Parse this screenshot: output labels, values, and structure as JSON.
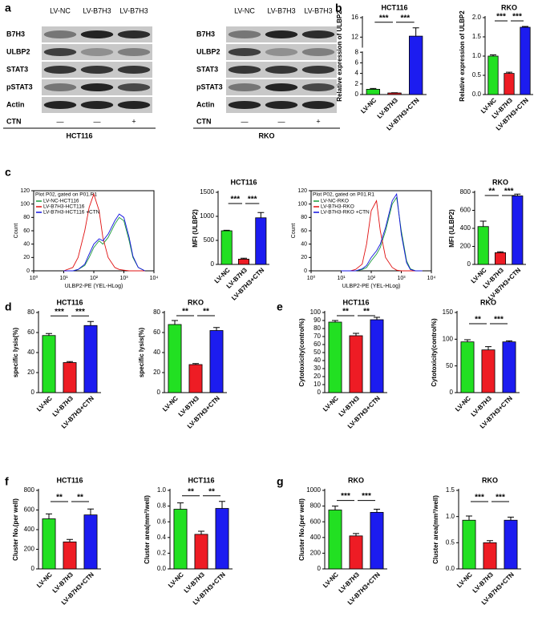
{
  "panel_labels": [
    "a",
    "b",
    "c",
    "d",
    "e",
    "f",
    "g"
  ],
  "blots": [
    {
      "cell_line": "HCT116",
      "lanes": [
        "LV-NC",
        "LV-B7H3",
        "LV-B7H3"
      ],
      "proteins": [
        "B7H3",
        "ULBP2",
        "STAT3",
        "pSTAT3",
        "Actin"
      ],
      "treatment": "CTN",
      "treatment_marks": [
        "—",
        "—",
        "+"
      ]
    },
    {
      "cell_line": "RKO",
      "lanes": [
        "LV-NC",
        "LV-B7H3",
        "LV-B7H3"
      ],
      "proteins": [
        "B7H3",
        "ULBP2",
        "STAT3",
        "pSTAT3",
        "Actin"
      ],
      "treatment": "CTN",
      "treatment_marks": [
        "—",
        "—",
        "+"
      ]
    }
  ],
  "chart_data": [
    {
      "type": "bar",
      "title": "HCT116",
      "ylabel": "Relative expression of ULBP2",
      "categories": [
        "LV-NC",
        "LV-B7H3",
        "LV-B7H3+CTN"
      ],
      "colors": [
        "#22e022",
        "#ee1c24",
        "#1c1cf0"
      ],
      "values": [
        1.0,
        0.3,
        12.2
      ],
      "errors": [
        0.15,
        0.05,
        1.7
      ],
      "significance": [
        "***",
        "***"
      ],
      "ylim": [
        0,
        16
      ],
      "ybreak": [
        8,
        10
      ],
      "yticks": [
        0,
        2,
        4,
        6,
        8,
        12,
        16
      ]
    },
    {
      "type": "bar",
      "title": "RKO",
      "ylabel": "Relative expression of ULBP2",
      "categories": [
        "LV-NC",
        "LV-B7H3",
        "LV-B7H3+CTN"
      ],
      "colors": [
        "#22e022",
        "#ee1c24",
        "#1c1cf0"
      ],
      "values": [
        1.0,
        0.55,
        1.75
      ],
      "errors": [
        0.03,
        0.03,
        0.02
      ],
      "significance": [
        "***",
        "***"
      ],
      "ylim": [
        0,
        2
      ],
      "yticks": [
        {
          "value": 0,
          "label": "0.0"
        },
        0.5,
        {
          "value": 1,
          "label": "1.0"
        },
        1.5,
        {
          "value": 2,
          "label": "2.0"
        }
      ]
    },
    {
      "type": "line",
      "title": "Plot P02, gated on P01.R1",
      "xlabel": "ULBP2-PE (YEL-HLog)",
      "ylabel": "Count",
      "xscale": "log",
      "x": [
        10,
        20,
        30,
        50,
        70,
        100,
        150,
        200,
        300,
        500,
        700,
        1000,
        1500,
        2000,
        3000,
        5000
      ],
      "series": [
        {
          "name": "LV-NC-HCT116",
          "color": "#1a9a3a",
          "values": [
            0,
            0,
            2,
            8,
            20,
            35,
            45,
            40,
            50,
            70,
            80,
            75,
            45,
            20,
            5,
            0
          ]
        },
        {
          "name": "LV-B7H3-HCT116",
          "color": "#e01010",
          "values": [
            0,
            5,
            20,
            60,
            95,
            115,
            90,
            50,
            20,
            5,
            2,
            1,
            0,
            0,
            0,
            0
          ]
        },
        {
          "name": "LV-B7H3-HCT116 +CTN",
          "color": "#1010e0",
          "values": [
            0,
            0,
            2,
            10,
            25,
            40,
            48,
            45,
            55,
            75,
            85,
            80,
            50,
            22,
            5,
            0
          ]
        }
      ],
      "xlim": [
        1,
        10000
      ],
      "xticks": [
        {
          "value": 1,
          "label": "10⁰"
        },
        {
          "value": 10,
          "label": "10¹"
        },
        {
          "value": 100,
          "label": "10²"
        },
        {
          "value": 1000,
          "label": "10³"
        },
        {
          "value": 10000,
          "label": "10⁴"
        }
      ],
      "ylim": [
        0,
        120
      ],
      "yticks": [
        0,
        20,
        40,
        60,
        80,
        100,
        120
      ]
    },
    {
      "type": "bar",
      "title": "HCT116",
      "ylabel": "MFI (ULBP2)",
      "categories": [
        "LV-NC",
        "LV-B7H3",
        "LV-B7H3+CTN"
      ],
      "colors": [
        "#22e022",
        "#ee1c24",
        "#1c1cf0"
      ],
      "values": [
        700,
        110,
        970
      ],
      "errors": [
        10,
        20,
        110
      ],
      "significance": [
        "***",
        "***"
      ],
      "ylim": [
        0,
        1500
      ],
      "yticks": [
        0,
        500,
        1000,
        1500
      ]
    },
    {
      "type": "line",
      "title": "Plot P02, gated on P01.R1",
      "xlabel": "ULBP2-PE (YEL-HLog)",
      "ylabel": "Count",
      "xscale": "log",
      "x": [
        10,
        20,
        30,
        50,
        70,
        100,
        150,
        200,
        300,
        500,
        700,
        1000,
        1500,
        2000,
        3000,
        5000
      ],
      "series": [
        {
          "name": "LV-NC-RKO",
          "color": "#1a9a3a",
          "values": [
            0,
            0,
            0,
            2,
            5,
            15,
            25,
            35,
            60,
            100,
            110,
            60,
            15,
            3,
            0,
            0
          ]
        },
        {
          "name": "LV-B7H3-RKO",
          "color": "#e01010",
          "values": [
            0,
            0,
            2,
            10,
            40,
            90,
            105,
            60,
            20,
            5,
            1,
            0,
            0,
            0,
            0,
            0
          ]
        },
        {
          "name": "LV-B7H3-RKO +CTN",
          "color": "#1010e0",
          "values": [
            0,
            0,
            0,
            3,
            8,
            20,
            30,
            40,
            65,
            105,
            115,
            55,
            12,
            2,
            0,
            0
          ]
        }
      ],
      "xlim": [
        1,
        10000
      ],
      "xticks": [
        {
          "value": 1,
          "label": "10⁰"
        },
        {
          "value": 10,
          "label": "10¹"
        },
        {
          "value": 100,
          "label": "10²"
        },
        {
          "value": 1000,
          "label": "10³"
        },
        {
          "value": 10000,
          "label": "10⁴"
        }
      ],
      "ylim": [
        0,
        120
      ],
      "yticks": [
        0,
        20,
        40,
        60,
        80,
        100,
        120
      ]
    },
    {
      "type": "bar",
      "title": "RKO",
      "ylabel": "MFI (ULBP2)",
      "categories": [
        "LV-NC",
        "LV-B7H3",
        "LV-B7H3+CTN"
      ],
      "colors": [
        "#22e022",
        "#ee1c24",
        "#1c1cf0"
      ],
      "values": [
        420,
        130,
        760
      ],
      "errors": [
        60,
        10,
        20
      ],
      "significance": [
        "**",
        "***"
      ],
      "ylim": [
        0,
        800
      ],
      "yticks": [
        0,
        200,
        400,
        600,
        800
      ]
    },
    {
      "type": "bar",
      "title": "HCT116",
      "ylabel": "specific lysis(%)",
      "categories": [
        "LV-NC",
        "LV-B7H3",
        "LV-B7H3+CTN"
      ],
      "colors": [
        "#22e022",
        "#ee1c24",
        "#1c1cf0"
      ],
      "values": [
        57,
        30,
        67
      ],
      "errors": [
        2,
        1,
        4
      ],
      "significance": [
        "***",
        "***"
      ],
      "ylim": [
        0,
        80
      ],
      "yticks": [
        0,
        20,
        40,
        60,
        80
      ]
    },
    {
      "type": "bar",
      "title": "RKO",
      "ylabel": "specific lysis(%)",
      "categories": [
        "LV-NC",
        "LV-B7H3",
        "LV-B7H3+CTN"
      ],
      "colors": [
        "#22e022",
        "#ee1c24",
        "#1c1cf0"
      ],
      "values": [
        68,
        28,
        62
      ],
      "errors": [
        4,
        1,
        3
      ],
      "significance": [
        "**",
        "**"
      ],
      "ylim": [
        0,
        80
      ],
      "yticks": [
        0,
        20,
        40,
        60,
        80
      ]
    },
    {
      "type": "bar",
      "title": "HCT116",
      "ylabel": "Cytotoxicity(control%)",
      "categories": [
        "LV-NC",
        "LV-B7H3",
        "LV-B7H3+CTN"
      ],
      "colors": [
        "#22e022",
        "#ee1c24",
        "#1c1cf0"
      ],
      "values": [
        88,
        71,
        91
      ],
      "errors": [
        2,
        3,
        3
      ],
      "significance": [
        "**",
        "**"
      ],
      "ylim": [
        0,
        100
      ],
      "yticks": [
        0,
        10,
        20,
        30,
        40,
        50,
        60,
        70,
        80,
        90,
        100
      ]
    },
    {
      "type": "bar",
      "title": "RKO",
      "ylabel": "Cytotoxicity(control%)",
      "categories": [
        "LV-NC",
        "LV-B7H3",
        "LV-B7H3+CTN"
      ],
      "colors": [
        "#22e022",
        "#ee1c24",
        "#1c1cf0"
      ],
      "values": [
        95,
        80,
        95
      ],
      "errors": [
        4,
        6,
        2
      ],
      "significance": [
        "**",
        "***"
      ],
      "ylim": [
        0,
        150
      ],
      "yticks": [
        0,
        50,
        100,
        150
      ]
    },
    {
      "type": "bar",
      "title": "HCT116",
      "ylabel": "Cluster No.(per well)",
      "categories": [
        "LV-NC",
        "LV-B7H3",
        "LV-B7H3+CTN"
      ],
      "colors": [
        "#22e022",
        "#ee1c24",
        "#1c1cf0"
      ],
      "values": [
        510,
        275,
        550
      ],
      "errors": [
        50,
        25,
        60
      ],
      "significance": [
        "**",
        "**"
      ],
      "ylim": [
        0,
        800
      ],
      "yticks": [
        0,
        200,
        400,
        600,
        800
      ]
    },
    {
      "type": "bar",
      "title": "HCT116",
      "ylabel": "Cluster area(mm²/well)",
      "categories": [
        "LV-NC",
        "LV-B7H3",
        "LV-B7H3+CTN"
      ],
      "colors": [
        "#22e022",
        "#ee1c24",
        "#1c1cf0"
      ],
      "values": [
        0.76,
        0.44,
        0.77
      ],
      "errors": [
        0.08,
        0.04,
        0.09
      ],
      "significance": [
        "**",
        "**"
      ],
      "ylim": [
        0,
        1
      ],
      "yticks": [
        {
          "value": 0,
          "label": "0.0"
        },
        0.2,
        0.4,
        0.6,
        0.8,
        {
          "value": 1,
          "label": "1.0"
        }
      ]
    },
    {
      "type": "bar",
      "title": "RKO",
      "ylabel": "Cluster No.(per well)",
      "categories": [
        "LV-NC",
        "LV-B7H3",
        "LV-B7H3+CTN"
      ],
      "colors": [
        "#22e022",
        "#ee1c24",
        "#1c1cf0"
      ],
      "values": [
        750,
        420,
        720
      ],
      "errors": [
        50,
        30,
        40
      ],
      "significance": [
        "***",
        "***"
      ],
      "ylim": [
        0,
        1000
      ],
      "yticks": [
        0,
        200,
        400,
        600,
        800,
        1000
      ]
    },
    {
      "type": "bar",
      "title": "RKO",
      "ylabel": "Cluster area(mm²/well)",
      "categories": [
        "LV-NC",
        "LV-B7H3",
        "LV-B7H3+CTN"
      ],
      "colors": [
        "#22e022",
        "#ee1c24",
        "#1c1cf0"
      ],
      "values": [
        0.93,
        0.5,
        0.93
      ],
      "errors": [
        0.08,
        0.04,
        0.06
      ],
      "significance": [
        "***",
        "***"
      ],
      "ylim": [
        0,
        1.5
      ],
      "yticks": [
        {
          "value": 0,
          "label": "0.0"
        },
        0.5,
        {
          "value": 1,
          "label": "1.0"
        },
        1.5
      ]
    }
  ]
}
